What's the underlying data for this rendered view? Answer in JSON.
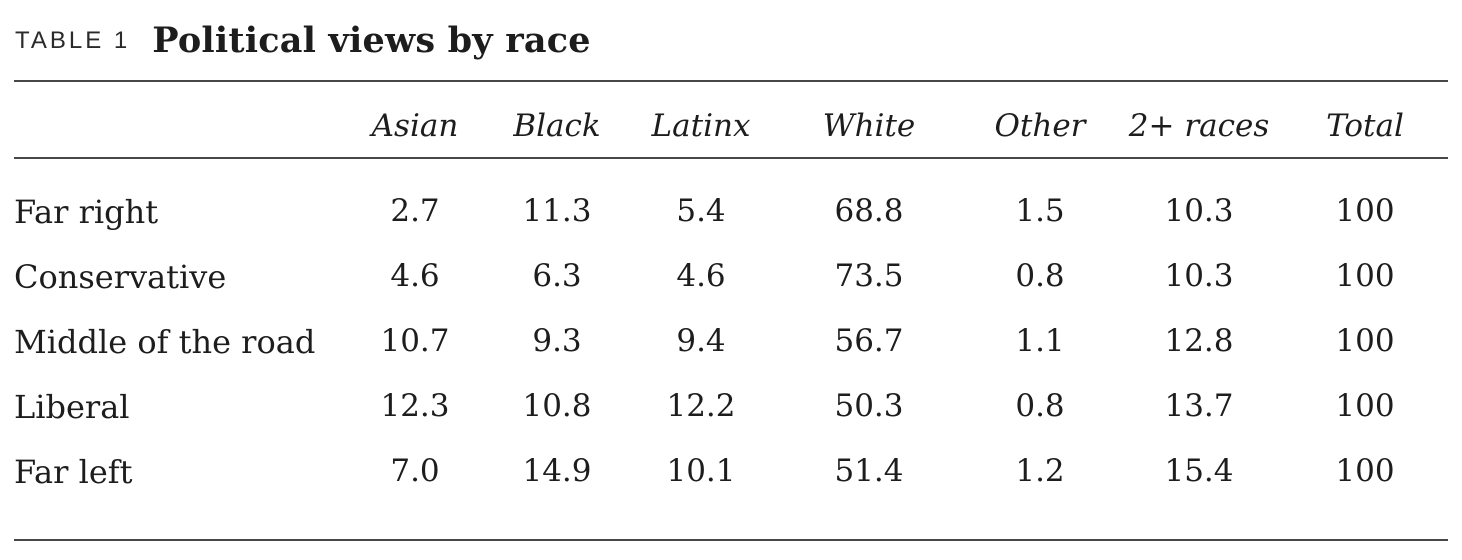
{
  "chart_data": {
    "type": "table",
    "table_label": "TABLE 1",
    "title": "Political views by race",
    "columns": [
      "Asian",
      "Black",
      "Latinx",
      "White",
      "Other",
      "2+ races",
      "Total"
    ],
    "row_labels": [
      "Far right",
      "Conservative",
      "Middle of the road",
      "Liberal",
      "Far left"
    ],
    "rows": [
      [
        "2.7",
        "11.3",
        "5.4",
        "68.8",
        "1.5",
        "10.3",
        "100"
      ],
      [
        "4.6",
        "6.3",
        "4.6",
        "73.5",
        "0.8",
        "10.3",
        "100"
      ],
      [
        "10.7",
        "9.3",
        "9.4",
        "56.7",
        "1.1",
        "12.8",
        "100"
      ],
      [
        "12.3",
        "10.8",
        "12.2",
        "50.3",
        "0.8",
        "13.7",
        "100"
      ],
      [
        "7.0",
        "14.9",
        "10.1",
        "51.4",
        "1.2",
        "15.4",
        "100"
      ]
    ]
  },
  "colors": {
    "text": "#1d1d1d",
    "rule": "#474747",
    "background": "#ffffff"
  }
}
